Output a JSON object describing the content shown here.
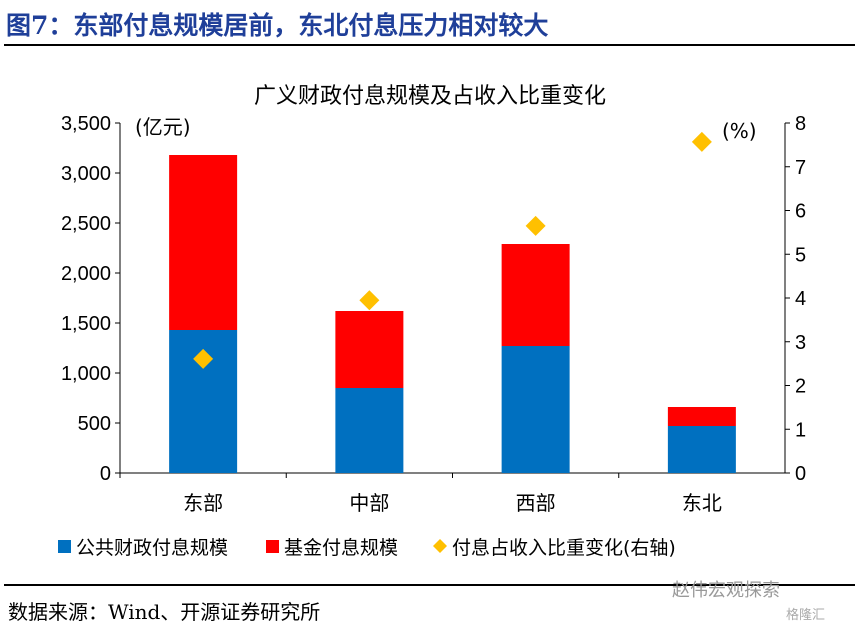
{
  "figure_title": "图7：东部付息规模居前，东北付息压力相对较大",
  "source": "数据来源：Wind、开源证券研究所",
  "watermark": "赵伟宏观探索",
  "watermark2": "格隆汇",
  "chart_data": {
    "type": "bar",
    "title": "广义财政付息规模及占收入比重变化",
    "categories": [
      "东部",
      "中部",
      "西部",
      "东北"
    ],
    "ylabel": "(亿元)",
    "y2label": "(%)",
    "ylim": [
      0,
      3500
    ],
    "yticks": [
      0,
      500,
      1000,
      1500,
      2000,
      2500,
      3000,
      3500
    ],
    "yticklabels": [
      "0",
      "500",
      "1,000",
      "1,500",
      "2,000",
      "2,500",
      "3,000",
      "3,500"
    ],
    "y2lim": [
      0,
      8
    ],
    "y2ticks": [
      0,
      1,
      2,
      3,
      4,
      5,
      6,
      7,
      8
    ],
    "series": [
      {
        "name": "公共财政付息规模",
        "type": "bar",
        "stack": true,
        "color": "#0070c0",
        "values": [
          1430,
          850,
          1270,
          470
        ]
      },
      {
        "name": "基金付息规模",
        "type": "bar",
        "stack": true,
        "color": "#ff0000",
        "values": [
          1750,
          770,
          1020,
          190
        ]
      },
      {
        "name": "付息占收入比重变化(右轴)",
        "type": "scatter",
        "axis": "right",
        "marker": "diamond",
        "color": "#ffc000",
        "values": [
          2.61,
          3.95,
          5.65,
          7.57
        ]
      }
    ],
    "legend": "bottom"
  }
}
